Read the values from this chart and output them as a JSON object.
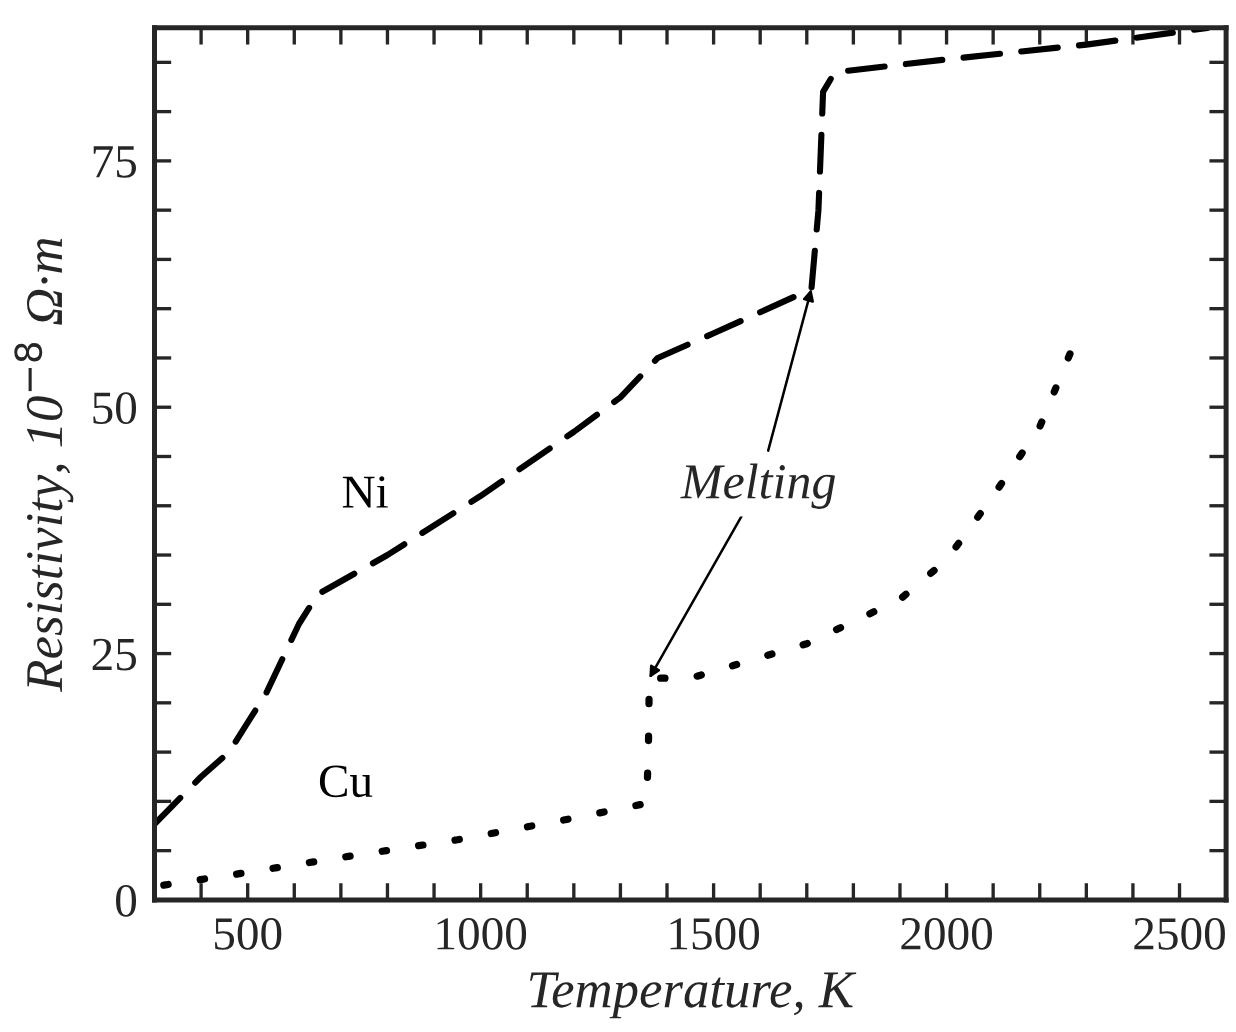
{
  "chart_data": {
    "type": "line",
    "xlabel": "Temperature, K",
    "ylabel": "Resistivity, 10$^{−8}$ Ω·m",
    "xlim": [
      300,
      2600
    ],
    "ylim": [
      0,
      88.5
    ],
    "xticks": [
      {
        "value": 300,
        "label": null
      },
      {
        "value": 400,
        "label": null
      },
      500,
      {
        "value": 600,
        "label": null
      },
      {
        "value": 700,
        "label": null
      },
      {
        "value": 800,
        "label": null
      },
      {
        "value": 900,
        "label": null
      },
      1000,
      {
        "value": 1100,
        "label": null
      },
      {
        "value": 1200,
        "label": null
      },
      {
        "value": 1300,
        "label": null
      },
      {
        "value": 1400,
        "label": null
      },
      1500,
      {
        "value": 1600,
        "label": null
      },
      {
        "value": 1700,
        "label": null
      },
      {
        "value": 1800,
        "label": null
      },
      {
        "value": 1900,
        "label": null
      },
      2000,
      {
        "value": 2100,
        "label": null
      },
      {
        "value": 2200,
        "label": null
      },
      {
        "value": 2300,
        "label": null
      },
      {
        "value": 2400,
        "label": null
      },
      2500
    ],
    "yticks": [
      0,
      {
        "value": 5,
        "label": null
      },
      {
        "value": 10,
        "label": null
      },
      {
        "value": 15,
        "label": null
      },
      {
        "value": 20,
        "label": null
      },
      25,
      {
        "value": 30,
        "label": null
      },
      {
        "value": 35,
        "label": null
      },
      {
        "value": 40,
        "label": null
      },
      {
        "value": 45,
        "label": null
      },
      50,
      {
        "value": 55,
        "label": null
      },
      {
        "value": 60,
        "label": null
      },
      {
        "value": 65,
        "label": null
      },
      {
        "value": 70,
        "label": null
      },
      75,
      {
        "value": 80,
        "label": null
      },
      {
        "value": 85,
        "label": null
      }
    ],
    "grid": false,
    "legend": false,
    "series": [
      {
        "name": "Ni",
        "color": "#000000",
        "line_style": "dashed",
        "x": [
          300,
          400,
          460,
          540,
          610,
          650,
          800,
          1000,
          1200,
          1300,
          1380,
          1500,
          1710,
          1725,
          1735,
          1760,
          2000,
          2300,
          2560
        ],
        "values": [
          7.7,
          12.5,
          15,
          21,
          28,
          31,
          35,
          41,
          47.5,
          51,
          55,
          57.5,
          62,
          70,
          82,
          84,
          85.3,
          86.8,
          88.5
        ]
      },
      {
        "name": "Cu",
        "color": "#000000",
        "line_style": "dotted",
        "x": [
          320,
          460,
          700,
          950,
          1200,
          1356,
          1360,
          1362,
          1450,
          1700,
          1900,
          2000,
          2100,
          2200,
          2270
        ],
        "values": [
          1.5,
          2.5,
          4.3,
          6.1,
          8.3,
          9.8,
          15,
          22.5,
          22.5,
          26,
          30.5,
          34.5,
          41,
          48,
          56
        ]
      }
    ],
    "annotations": [
      {
        "text": "Melting",
        "x": 1710,
        "y": 62
      }
    ]
  }
}
